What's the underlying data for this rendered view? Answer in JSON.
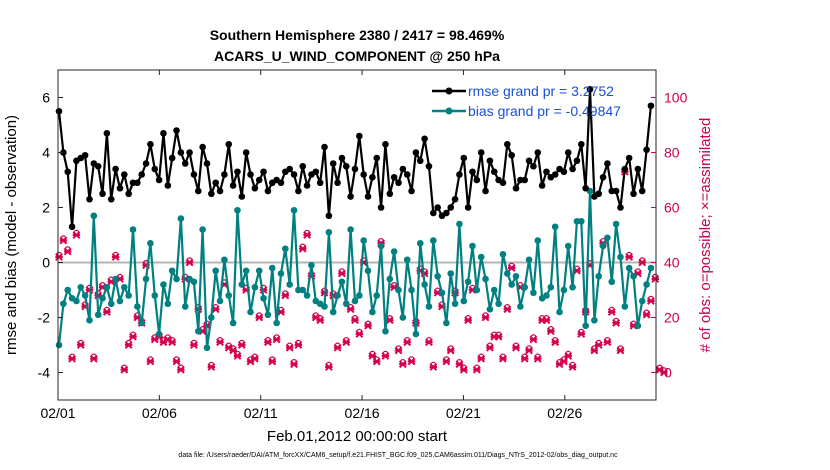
{
  "chart_data": {
    "type": "line",
    "title": "Southern Hemisphere 2380 / 2417 = 98.469%",
    "subtitle": "ACARS_U_WIND_COMPONENT @ 250 hPa",
    "xlabel": "Feb.01,2012 00:00:00 start",
    "ylabel": "rmse and bias (model - observation)",
    "ylabel_right": "# of obs: o=possible; ×=assimilated",
    "footer": "data file: /Users/raeder/DAI/ATM_forcXX/CAM6_setup/f.e21.FHIST_BGC.f09_025.CAM6assim.011/Diags_NTrS_2012-02/obs_diag_output.nc",
    "xlim": [
      0,
      29.5
    ],
    "ylim": [
      -5,
      7
    ],
    "ylim_right": [
      -10,
      110
    ],
    "x_ticks": [
      0,
      5,
      10,
      15,
      20,
      25
    ],
    "x_tick_labels": [
      "02/01",
      "02/06",
      "02/11",
      "02/16",
      "02/21",
      "02/26"
    ],
    "y_ticks": [
      -4,
      -2,
      0,
      2,
      4,
      6
    ],
    "y_tick_labels": [
      "-4",
      "-2",
      "0",
      "2",
      "4",
      "6"
    ],
    "y_right_ticks": [
      0,
      20,
      40,
      60,
      80,
      100
    ],
    "y_right_tick_labels": [
      "0",
      "20",
      "40",
      "60",
      "80",
      "100"
    ],
    "zero_line": 0,
    "legend": {
      "placement": "top-right",
      "entries": [
        {
          "label": "rmse grand pr = 3.2752",
          "color": "#000000"
        },
        {
          "label": "bias grand pr = -0.49847",
          "color": "#008080"
        }
      ]
    },
    "colors": {
      "rmse": "#000000",
      "bias": "#008080",
      "obs": "#d6004f",
      "zero": "#b4b4b4"
    },
    "series": [
      {
        "name": "rmse",
        "values": [
          5.5,
          4.0,
          3.3,
          1.3,
          3.7,
          3.8,
          3.9,
          2.3,
          3.6,
          3.5,
          2.5,
          4.7,
          2.3,
          3.4,
          2.7,
          3.2,
          2.5,
          2.9,
          2.9,
          3.2,
          3.6,
          4.3,
          3.4,
          3.0,
          4.7,
          2.8,
          3.8,
          4.8,
          4.0,
          3.6,
          4.0,
          3.2,
          2.6,
          4.2,
          3.6,
          2.5,
          2.9,
          2.6,
          3.2,
          4.3,
          2.8,
          3.3,
          2.4,
          4.0,
          3.2,
          2.7,
          3.0,
          3.3,
          2.6,
          2.9,
          3.0,
          2.9,
          3.3,
          3.4,
          3.2,
          2.6,
          3.5,
          2.8,
          3.2,
          3.3,
          2.9,
          4.2,
          1.7,
          3.6,
          2.9,
          3.8,
          3.5,
          2.4,
          3.4,
          4.6,
          3.2,
          2.4,
          3.1,
          3.8,
          2.0,
          4.3,
          2.5,
          3.1,
          2.9,
          3.4,
          3.2,
          2.6,
          4.0,
          3.7,
          4.5,
          3.5,
          1.8,
          2.0,
          1.7,
          1.8,
          2.0,
          2.3,
          3.2,
          3.8,
          2.0,
          3.3,
          3.0,
          4.0,
          2.6,
          3.7,
          3.3,
          3.0,
          2.9,
          4.3,
          3.9,
          2.7,
          3.0,
          3.0,
          3.7,
          3.5,
          4.0,
          2.8,
          3.3,
          3.1,
          3.2,
          3.4,
          3.3,
          4.0,
          3.4,
          3.7,
          4.3,
          2.7,
          6.3,
          2.4,
          2.5,
          3.1,
          3.6,
          2.6,
          2.6,
          2.0,
          3.4,
          3.8,
          2.5,
          3.4,
          2.6,
          4.1,
          5.7
        ]
      },
      {
        "name": "bias",
        "values": [
          -3.0,
          -1.5,
          -1.0,
          -1.3,
          -1.4,
          -0.9,
          -1.2,
          -2.1,
          1.7,
          -1.9,
          -1.3,
          -0.9,
          -1.5,
          -0.6,
          -1.4,
          -0.9,
          -1.2,
          1.2,
          -1.6,
          -2.2,
          -0.6,
          0.7,
          -1.2,
          -2.6,
          -0.8,
          -1.5,
          -0.3,
          -0.6,
          1.6,
          -1.6,
          -0.6,
          -0.7,
          -2.5,
          1.2,
          -3.1,
          -2.0,
          -0.3,
          -1.4,
          0.1,
          -1.2,
          -2.2,
          1.9,
          -0.8,
          -0.3,
          -1.8,
          -0.9,
          -0.3,
          -1.3,
          -1.9,
          -0.2,
          -2.2,
          -0.4,
          0.5,
          -0.8,
          1.9,
          -1.0,
          -1.0,
          -1.2,
          -0.1,
          -1.4,
          -1.5,
          -1.6,
          1.1,
          -1.8,
          -1.2,
          -0.7,
          -1.5,
          1.2,
          -1.4,
          -1.2,
          0.8,
          -0.3,
          -1.8,
          -1.2,
          0.6,
          -2.5,
          -0.6,
          0.4,
          -1.0,
          -2.0,
          0.1,
          -1.0,
          -2.6,
          0.7,
          -0.8,
          -1.6,
          0.8,
          -0.5,
          -1.1,
          -2.2,
          -0.4,
          -1.5,
          1.4,
          -1.4,
          -0.7,
          0.6,
          -1.0,
          0.2,
          -0.6,
          -1.7,
          -1.0,
          -1.5,
          0.3,
          -0.4,
          -0.8,
          -0.5,
          -1.6,
          -0.9,
          0.1,
          -1.1,
          0.8,
          -1.3,
          -1.2,
          -0.9,
          1.3,
          -1.8,
          -1.0,
          0.6,
          -0.9,
          1.5,
          1.5,
          -2.3,
          2.6,
          -2.1,
          -0.5,
          0.6,
          0.9,
          -0.7,
          1.4,
          0.2,
          -1.6,
          -0.2,
          -0.5,
          -2.3,
          -1.4,
          -0.8,
          -0.2
        ]
      },
      {
        "name": "obs_assimilated",
        "values": [
          42,
          48,
          44,
          5,
          50,
          10,
          24,
          30,
          5,
          28,
          31,
          22,
          33,
          42,
          34,
          1,
          10,
          13,
          20,
          18,
          39,
          4,
          12,
          13,
          11,
          12,
          11,
          4,
          1,
          34,
          40,
          10,
          23,
          15,
          17,
          2,
          23,
          11,
          32,
          9,
          8,
          6,
          10,
          30,
          4,
          5,
          20,
          30,
          11,
          4,
          12,
          22,
          28,
          9,
          3,
          10,
          45,
          50,
          35,
          20,
          19,
          29,
          2,
          28,
          9,
          36,
          11,
          23,
          19,
          14,
          40,
          17,
          6,
          4,
          47,
          6,
          19,
          31,
          8,
          3,
          11,
          4,
          18,
          37,
          36,
          11,
          2,
          29,
          24,
          4,
          8,
          29,
          3,
          1,
          19,
          30,
          1,
          5,
          20,
          9,
          13,
          13,
          5,
          23,
          38,
          9,
          31,
          5,
          8,
          12,
          5,
          19,
          19,
          15,
          11,
          3,
          4,
          6,
          2,
          37,
          14,
          22,
          39,
          8,
          10,
          47,
          11,
          22,
          18,
          8,
          73,
          42,
          17,
          36,
          40,
          21,
          26,
          34,
          1,
          0
        ]
      },
      {
        "name": "obs_possible",
        "values": [
          42,
          48,
          44,
          5,
          50,
          10,
          24,
          30,
          5,
          28,
          31,
          22,
          33,
          42,
          34,
          1,
          10,
          13,
          20,
          18,
          39,
          4,
          12,
          13,
          11,
          12,
          11,
          4,
          1,
          34,
          40,
          10,
          23,
          15,
          17,
          2,
          23,
          11,
          32,
          9,
          8,
          6,
          10,
          30,
          4,
          5,
          20,
          30,
          11,
          4,
          12,
          22,
          28,
          9,
          3,
          10,
          45,
          50,
          35,
          20,
          19,
          29,
          2,
          28,
          9,
          36,
          11,
          23,
          19,
          14,
          40,
          17,
          6,
          4,
          47,
          6,
          19,
          31,
          8,
          3,
          11,
          4,
          18,
          37,
          36,
          11,
          2,
          29,
          24,
          4,
          8,
          29,
          3,
          1,
          19,
          30,
          1,
          5,
          20,
          9,
          13,
          13,
          5,
          23,
          38,
          9,
          31,
          5,
          8,
          12,
          5,
          19,
          19,
          15,
          11,
          3,
          4,
          6,
          2,
          37,
          14,
          22,
          39,
          8,
          10,
          47,
          11,
          22,
          18,
          8,
          73,
          42,
          17,
          36,
          40,
          21,
          26,
          34,
          1,
          0
        ]
      }
    ]
  }
}
